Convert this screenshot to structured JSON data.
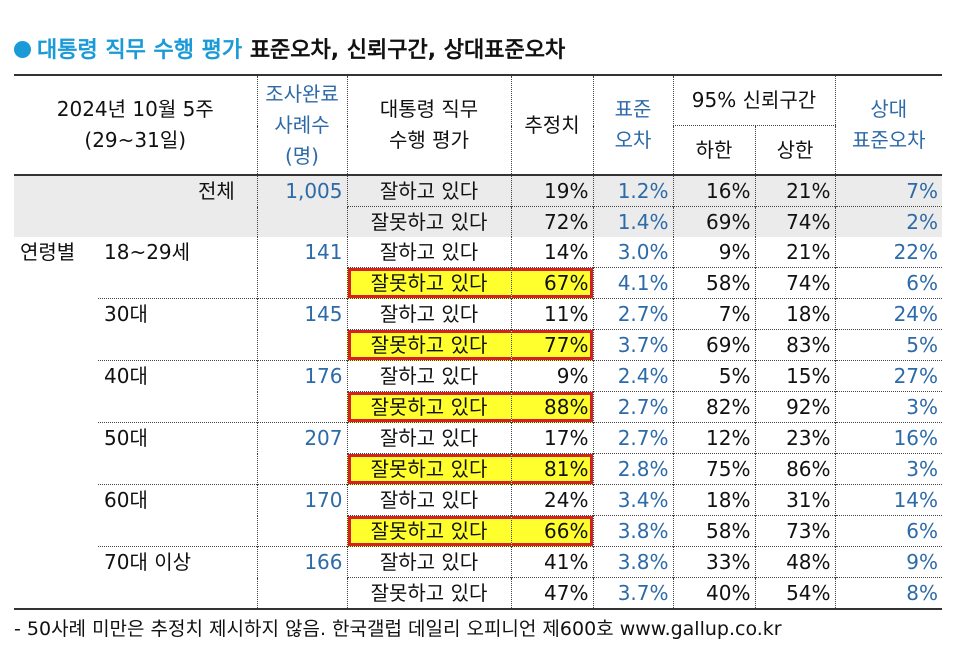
{
  "title": {
    "blue_text": "대통령 직무 수행 평가",
    "black_text": "표준오차, 신뢰구간, 상대표준오차"
  },
  "header": {
    "period_line1": "2024년 10월 5주",
    "period_line2": "(29~31일)",
    "sample_line1": "조사완료",
    "sample_line2": "사례수",
    "sample_line3": "(명)",
    "eval_line1": "대통령 직무",
    "eval_line2": "수행 평가",
    "estimate": "추정치",
    "se_line1": "표준",
    "se_line2": "오차",
    "ci": "95% 신뢰구간",
    "ci_low": "하한",
    "ci_high": "상한",
    "rse_line1": "상대",
    "rse_line2": "표준오차"
  },
  "groups": [
    {
      "label": "전체",
      "n": "1,005",
      "rows": [
        {
          "eval": "잘하고 있다",
          "est": "19%",
          "se": "1.2%",
          "low": "16%",
          "high": "21%",
          "rse": "7%"
        },
        {
          "eval": "잘못하고 있다",
          "est": "72%",
          "se": "1.4%",
          "low": "69%",
          "high": "74%",
          "rse": "2%"
        }
      ]
    },
    {
      "label": "18~29세",
      "prefix": "연령별",
      "n": "141",
      "rows": [
        {
          "eval": "잘하고 있다",
          "est": "14%",
          "se": "3.0%",
          "low": "9%",
          "high": "21%",
          "rse": "22%"
        },
        {
          "eval": "잘못하고 있다",
          "est": "67%",
          "se": "4.1%",
          "low": "58%",
          "high": "74%",
          "rse": "6%",
          "highlight": true
        }
      ]
    },
    {
      "label": "30대",
      "n": "145",
      "rows": [
        {
          "eval": "잘하고 있다",
          "est": "11%",
          "se": "2.7%",
          "low": "7%",
          "high": "18%",
          "rse": "24%"
        },
        {
          "eval": "잘못하고 있다",
          "est": "77%",
          "se": "3.7%",
          "low": "69%",
          "high": "83%",
          "rse": "5%",
          "highlight": true
        }
      ]
    },
    {
      "label": "40대",
      "n": "176",
      "rows": [
        {
          "eval": "잘하고 있다",
          "est": "9%",
          "se": "2.4%",
          "low": "5%",
          "high": "15%",
          "rse": "27%"
        },
        {
          "eval": "잘못하고 있다",
          "est": "88%",
          "se": "2.7%",
          "low": "82%",
          "high": "92%",
          "rse": "3%",
          "highlight": true
        }
      ]
    },
    {
      "label": "50대",
      "n": "207",
      "rows": [
        {
          "eval": "잘하고 있다",
          "est": "17%",
          "se": "2.7%",
          "low": "12%",
          "high": "23%",
          "rse": "16%"
        },
        {
          "eval": "잘못하고 있다",
          "est": "81%",
          "se": "2.8%",
          "low": "75%",
          "high": "86%",
          "rse": "3%",
          "highlight": true
        }
      ]
    },
    {
      "label": "60대",
      "n": "170",
      "rows": [
        {
          "eval": "잘하고 있다",
          "est": "24%",
          "se": "3.4%",
          "low": "18%",
          "high": "31%",
          "rse": "14%"
        },
        {
          "eval": "잘못하고 있다",
          "est": "66%",
          "se": "3.8%",
          "low": "58%",
          "high": "73%",
          "rse": "6%",
          "highlight": true
        }
      ]
    },
    {
      "label": "70대 이상",
      "n": "166",
      "rows": [
        {
          "eval": "잘하고 있다",
          "est": "41%",
          "se": "3.8%",
          "low": "33%",
          "high": "48%",
          "rse": "9%"
        },
        {
          "eval": "잘못하고 있다",
          "est": "47%",
          "se": "3.7%",
          "low": "40%",
          "high": "54%",
          "rse": "8%"
        }
      ]
    }
  ],
  "footnote": "- 50사례 미만은 추정치 제시하지 않음. 한국갤럽 데일리 오피니언 제600호 www.gallup.co.kr",
  "colors": {
    "accent_blue": "#1a9ad6",
    "value_blue": "#2d6aa8",
    "highlight_yellow": "#ffff2e",
    "highlight_border": "#d42121",
    "total_row_gray": "#ebebeb"
  }
}
